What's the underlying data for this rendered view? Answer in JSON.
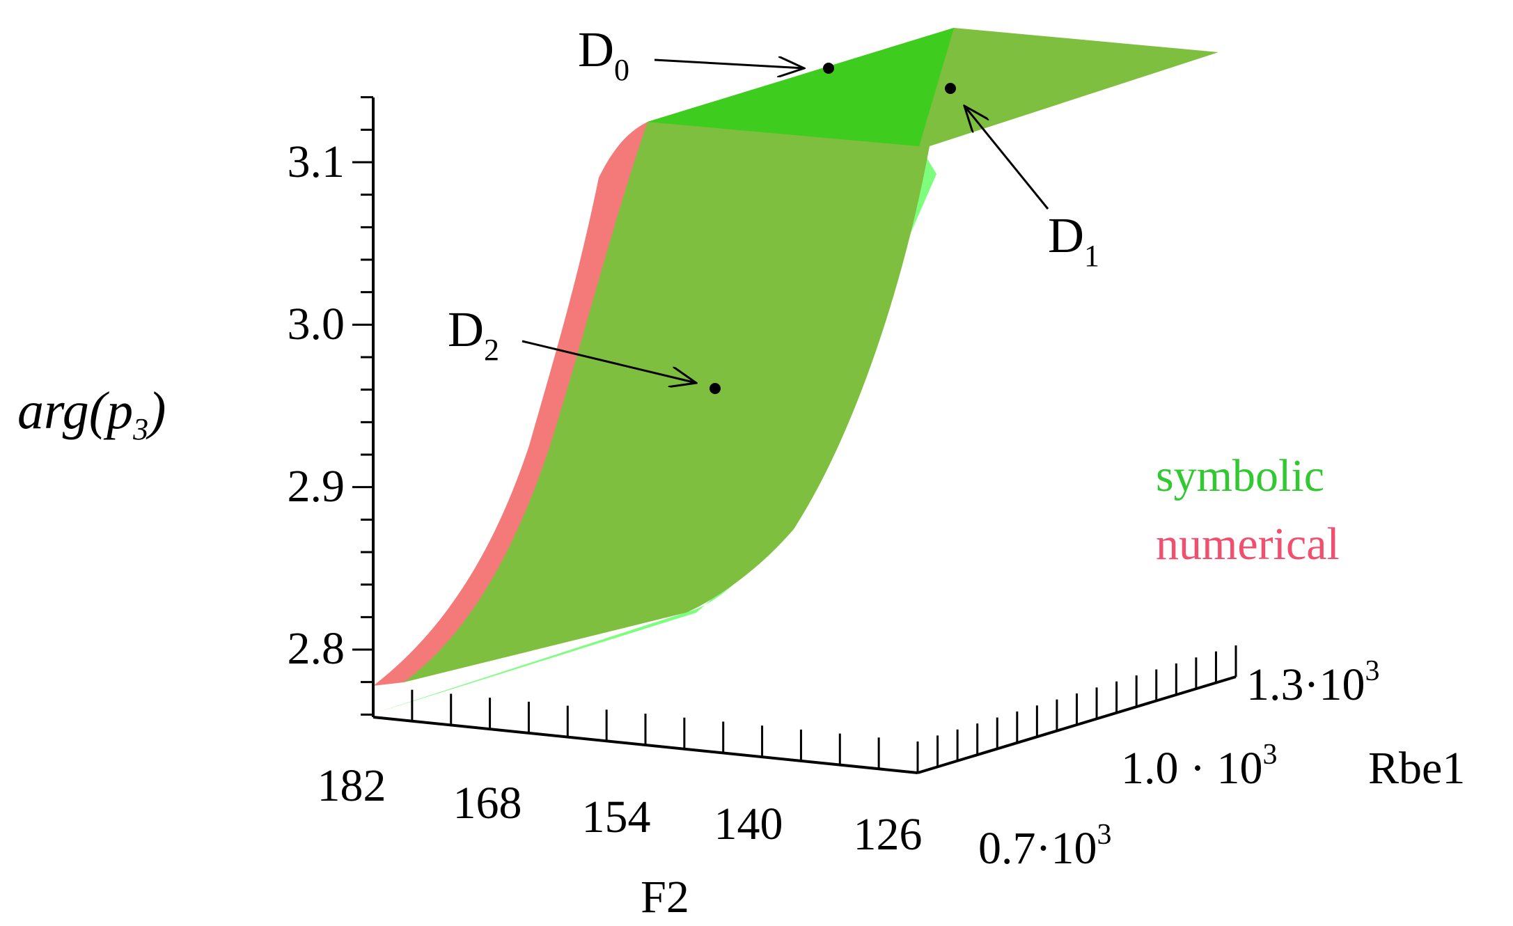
{
  "chart_data": {
    "type": "surface3d",
    "zlabel": {
      "italic_main": "arg(p",
      "subscript": "3",
      "close": ")"
    },
    "xlabel": "F2",
    "ylabel": "Rbe1",
    "x_ticks": [
      "182",
      "168",
      "154",
      "140",
      "126"
    ],
    "y_ticks": [
      {
        "mantissa": "0.7",
        "sep": "·",
        "base": "10",
        "exp": "3"
      },
      {
        "mantissa": "1.0",
        "sep": " · ",
        "base": "10",
        "exp": "3"
      },
      {
        "mantissa": "1.3",
        "sep": "·",
        "base": "10",
        "exp": "3"
      }
    ],
    "z_ticks": [
      "3.1",
      "3.0",
      "2.9",
      "2.8"
    ],
    "z_tick_values": [
      3.1,
      3.0,
      2.9,
      2.8
    ],
    "x_range": [
      126,
      182
    ],
    "y_range": [
      700,
      1300
    ],
    "legend": {
      "position": "right",
      "entries": [
        {
          "name": "symbolic",
          "color": "#32c832"
        },
        {
          "name": "numerical",
          "color": "#f0506e"
        }
      ]
    },
    "series": [
      {
        "name": "symbolic",
        "color": "#7fbf3f",
        "highlight": "#3ecc1e",
        "edge": "#7dff7d"
      },
      {
        "name": "numerical",
        "color": "#f47a7a"
      }
    ],
    "annotations": [
      {
        "main": "D",
        "sub": "0"
      },
      {
        "main": "D",
        "sub": "1"
      },
      {
        "main": "D",
        "sub": "2"
      }
    ]
  }
}
